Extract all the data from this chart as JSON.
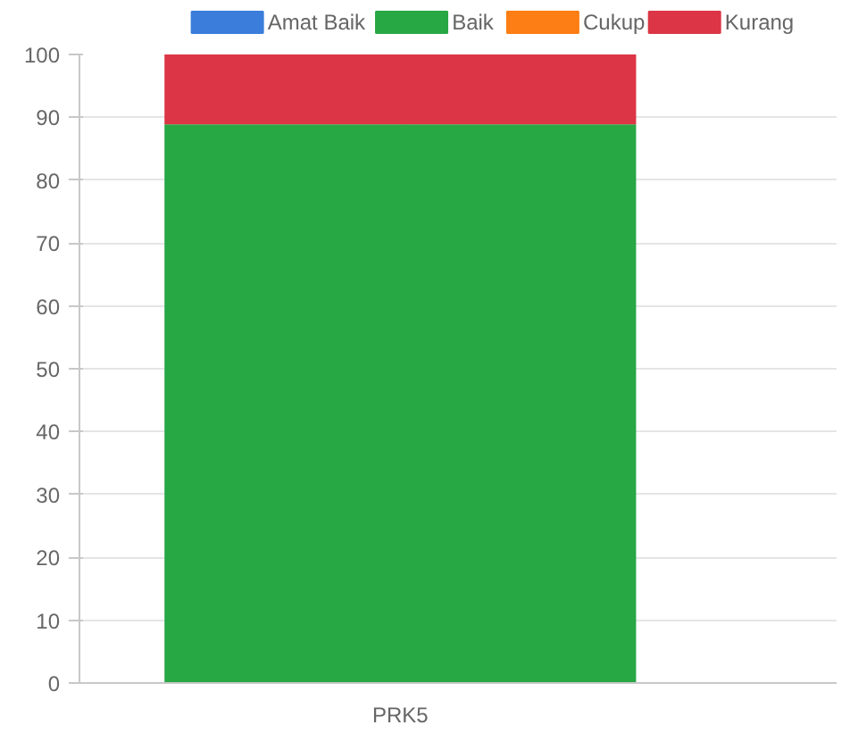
{
  "chart_data": {
    "type": "bar",
    "stacked": true,
    "categories": [
      "PRK5"
    ],
    "series": [
      {
        "name": "Amat Baik",
        "color": "#3a7dda",
        "values": [
          0
        ]
      },
      {
        "name": "Baik",
        "color": "#28a745",
        "values": [
          88.9
        ]
      },
      {
        "name": "Cukup",
        "color": "#fd7e14",
        "values": [
          0
        ]
      },
      {
        "name": "Kurang",
        "color": "#dc3545",
        "values": [
          11.1
        ]
      }
    ],
    "ylim": [
      0,
      100
    ],
    "yticks": [
      0,
      10,
      20,
      30,
      40,
      50,
      60,
      70,
      80,
      90,
      100
    ],
    "grid": true,
    "legend": "top"
  }
}
